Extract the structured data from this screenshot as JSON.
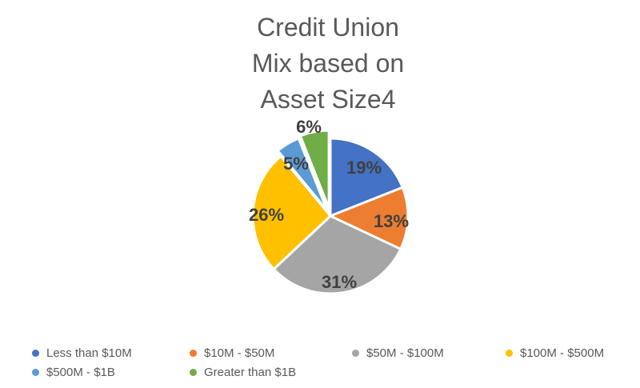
{
  "chart_data": {
    "type": "pie",
    "title": "Credit Union Mix based on Asset Size4",
    "title_lines": [
      "Credit Union",
      "Mix based on",
      "Asset Size4"
    ],
    "legend_position": "bottom",
    "slices": [
      {
        "name": "Less than $10M",
        "value": 19,
        "label": "19%",
        "color": "#4472C4"
      },
      {
        "name": "$10M - $50M",
        "value": 13,
        "label": "13%",
        "color": "#ED7D31"
      },
      {
        "name": "$50M - $100M",
        "value": 31,
        "label": "31%",
        "color": "#A5A5A5"
      },
      {
        "name": "$100M - $500M",
        "value": 26,
        "label": "26%",
        "color": "#FFC000"
      },
      {
        "name": "$500M - $1B",
        "value": 5,
        "label": "5%",
        "color": "#5B9BD5"
      },
      {
        "name": "Greater than $1B",
        "value": 6,
        "label": "6%",
        "color": "#70AD47"
      }
    ]
  }
}
